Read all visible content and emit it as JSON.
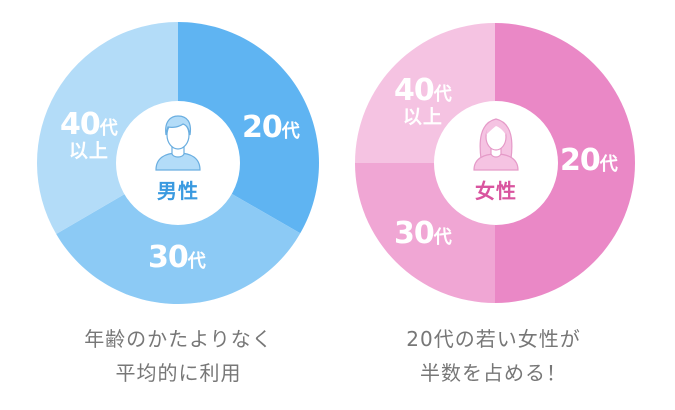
{
  "chart_data": [
    {
      "type": "pie",
      "title": "男性",
      "categories": [
        "20代",
        "30代",
        "40代以上"
      ],
      "values": [
        33.3,
        33.3,
        33.4
      ],
      "colors": [
        "#5fb4f2",
        "#8ccaf5",
        "#b3dcf8"
      ],
      "start_angle_deg": 0,
      "direction": "clockwise",
      "caption": "年齢のかたよりなく平均的に利用"
    },
    {
      "type": "pie",
      "title": "女性",
      "categories": [
        "20代",
        "30代",
        "40代以上"
      ],
      "values": [
        50,
        25,
        25
      ],
      "colors": [
        "#ea88c6",
        "#f0a6d4",
        "#f5c3e2"
      ],
      "start_angle_deg": 0,
      "direction": "clockwise",
      "caption": "20代の若い女性が半数を占める！"
    }
  ],
  "male": {
    "center_label": "男性",
    "accent": "#3a9ae0",
    "icon": "male-person-icon",
    "segments": [
      {
        "num": "20",
        "unit": "代",
        "sub": ""
      },
      {
        "num": "30",
        "unit": "代",
        "sub": ""
      },
      {
        "num": "40",
        "unit": "代",
        "sub": "以上"
      }
    ],
    "caption_line1": "年齢のかたよりなく",
    "caption_line2": "平均的に利用"
  },
  "female": {
    "center_label": "女性",
    "accent": "#d9549f",
    "icon": "female-person-icon",
    "segments": [
      {
        "num": "20",
        "unit": "代",
        "sub": ""
      },
      {
        "num": "30",
        "unit": "代",
        "sub": ""
      },
      {
        "num": "40",
        "unit": "代",
        "sub": "以上"
      }
    ],
    "caption_line1": "20代の若い女性が",
    "caption_line2": "半数を占める！"
  }
}
